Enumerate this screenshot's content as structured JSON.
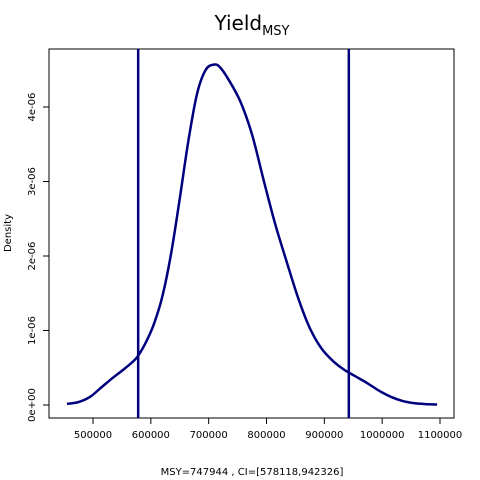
{
  "chart_data": {
    "type": "line",
    "title": "Yield",
    "title_subscript": "MSY",
    "xlabel": "MSY=747944 , CI=[578118,942326]",
    "ylabel": "Density",
    "xlim": [
      450000,
      1100000
    ],
    "ylim": [
      0,
      4.75e-06
    ],
    "x_ticks": [
      500000,
      600000,
      700000,
      800000,
      900000,
      1000000,
      1100000
    ],
    "x_tick_labels": [
      "500000",
      "600000",
      "700000",
      "800000",
      "900000",
      "1000000",
      "1100000"
    ],
    "y_ticks": [
      0,
      1e-06,
      2e-06,
      3e-06,
      4e-06
    ],
    "y_tick_labels": [
      "0e+00",
      "1e-06",
      "2e-06",
      "3e-06",
      "4e-06"
    ],
    "line_color": "#00007f",
    "series": [
      {
        "x": [
          455000,
          475000,
          495000,
          515000,
          535000,
          555000,
          575000,
          590000,
          605000,
          620000,
          635000,
          650000,
          665000,
          680000,
          695000,
          710000,
          720000,
          735000,
          755000,
          775000,
          795000,
          815000,
          835000,
          855000,
          875000,
          895000,
          915000,
          935000,
          955000,
          975000,
          995000,
          1015000,
          1035000,
          1055000,
          1075000,
          1095000
        ],
        "y": [
          1.5e-08,
          4e-08,
          1.1e-07,
          2.4e-07,
          3.7e-07,
          4.9e-07,
          6.3e-07,
          8.2e-07,
          1.08e-06,
          1.46e-06,
          2.03e-06,
          2.77e-06,
          3.55e-06,
          4.18e-06,
          4.5e-06,
          4.57e-06,
          4.53e-06,
          4.36e-06,
          4.07e-06,
          3.63e-06,
          3.02e-06,
          2.43e-06,
          1.92e-06,
          1.43e-06,
          1.03e-06,
          7.6e-07,
          5.9e-07,
          4.7e-07,
          3.8e-07,
          2.9e-07,
          1.9e-07,
          1.1e-07,
          5.5e-08,
          2.5e-08,
          1.2e-08,
          6e-09
        ]
      }
    ],
    "vlines": [
      578118,
      942326
    ],
    "estimate": 747944
  }
}
